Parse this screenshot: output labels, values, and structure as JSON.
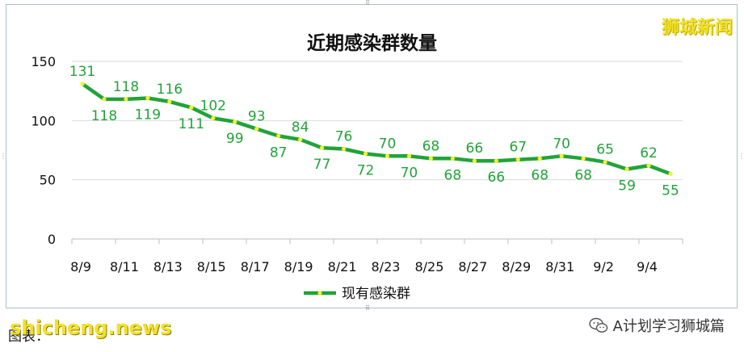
{
  "watermark": "狮城新闻",
  "source_label": "图表：",
  "source_site": "shicheng.news",
  "wechat_account": "A计划学习狮城篇",
  "icons": {
    "wechat": "wechat-icon"
  },
  "colors": {
    "line": "#21a339",
    "marker": "#f3f32a",
    "label": "#21a339",
    "grid": "#dcdcdc"
  },
  "chart_data": {
    "type": "line",
    "title": "近期感染群数量",
    "xlabel": "",
    "ylabel": "",
    "ylim": [
      0,
      150
    ],
    "yticks": [
      "0",
      "50",
      "100",
      "150"
    ],
    "grid": "horizontal",
    "legend": "bottom",
    "x": [
      "8/9",
      "8/10",
      "8/11",
      "8/12",
      "8/13",
      "8/14",
      "8/15",
      "8/16",
      "8/17",
      "8/18",
      "8/19",
      "8/20",
      "8/21",
      "8/22",
      "8/23",
      "8/24",
      "8/25",
      "8/26",
      "8/27",
      "8/28",
      "8/29",
      "8/30",
      "8/31",
      "9/1",
      "9/2",
      "9/3",
      "9/4",
      "9/5"
    ],
    "xtick_labels": [
      "8/9",
      "8/11",
      "8/13",
      "8/15",
      "8/17",
      "8/19",
      "8/21",
      "8/23",
      "8/25",
      "8/27",
      "8/29",
      "8/31",
      "9/2",
      "9/4"
    ],
    "series": [
      {
        "name": "现有感染群",
        "values": [
          131,
          118,
          118,
          119,
          116,
          111,
          102,
          99,
          93,
          87,
          84,
          77,
          76,
          72,
          70,
          70,
          68,
          68,
          66,
          66,
          67,
          68,
          70,
          68,
          65,
          59,
          62,
          55
        ]
      }
    ]
  }
}
